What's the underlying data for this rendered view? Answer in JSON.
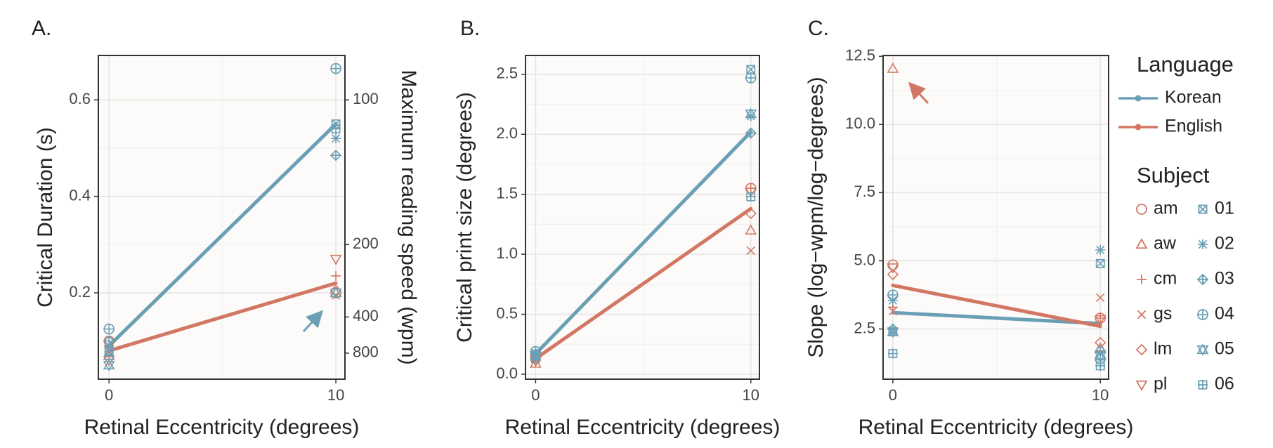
{
  "chart_data": [
    {
      "type": "scatter",
      "label": "A.",
      "xlabel": "Retinal Eccentricity (degrees)",
      "ylabel": "Critical Duration (s)",
      "y2label": "Maximum reading speed (wpm)",
      "x": [
        0,
        10
      ],
      "xlim": [
        -0.47,
        10.4
      ],
      "xticks": [
        0,
        10
      ],
      "ylim": [
        0.021,
        0.692
      ],
      "yticks": [
        0.2,
        0.4,
        0.6
      ],
      "y2lim": [
        2857,
        86.7
      ],
      "y2ticks": [
        100,
        200,
        400,
        800
      ],
      "y2scale": "reciprocal",
      "grid": true,
      "series": [
        {
          "name": "Korean",
          "color": "#6a9fb5",
          "values": [
            0.09,
            0.55
          ]
        },
        {
          "name": "English",
          "color": "#d27764",
          "values": [
            0.08,
            0.22
          ]
        },
        {
          "name": "am",
          "color": "#d27764",
          "marker": "circle",
          "values": [
            0.1,
            0.2
          ]
        },
        {
          "name": "aw",
          "color": "#d27764",
          "marker": "triangle",
          "values": [
            0.07,
            0.2
          ]
        },
        {
          "name": "cm",
          "color": "#d27764",
          "marker": "plus",
          "values": [
            0.09,
            0.235
          ]
        },
        {
          "name": "gs",
          "color": "#d27764",
          "marker": "cross",
          "values": [
            0.085,
            0.195
          ]
        },
        {
          "name": "lm",
          "color": "#d27764",
          "marker": "diamond",
          "values": [
            0.1,
            0.205
          ]
        },
        {
          "name": "pl",
          "color": "#d27764",
          "marker": "triangle-down",
          "values": [
            0.06,
            0.27
          ]
        },
        {
          "name": "01",
          "color": "#6a9fb5",
          "marker": "square-cross",
          "values": [
            0.08,
            0.55
          ]
        },
        {
          "name": "02",
          "color": "#6a9fb5",
          "marker": "asterisk",
          "values": [
            0.09,
            0.52
          ]
        },
        {
          "name": "03",
          "color": "#6a9fb5",
          "marker": "diamond-plus",
          "values": [
            0.1,
            0.485
          ]
        },
        {
          "name": "04",
          "color": "#6a9fb5",
          "marker": "circle-plus",
          "values": [
            0.125,
            0.665
          ]
        },
        {
          "name": "05",
          "color": "#6a9fb5",
          "marker": "star",
          "values": [
            0.05,
            0.2
          ]
        },
        {
          "name": "06",
          "color": "#6a9fb5",
          "marker": "square-plus",
          "values": [
            0.07,
            0.54
          ]
        }
      ]
    },
    {
      "type": "scatter",
      "label": "B.",
      "xlabel": "Retinal Eccentricity (degrees)",
      "ylabel": "Critical print size (degrees)",
      "x": [
        0,
        10
      ],
      "xlim": [
        -0.47,
        10.4
      ],
      "xticks": [
        0,
        10
      ],
      "ylim": [
        -0.041,
        2.657
      ],
      "yticks": [
        {
          "value": 0,
          "label": "0.0"
        },
        0.5,
        {
          "value": 1,
          "label": "1.0"
        },
        1.5,
        {
          "value": 2,
          "label": "2.0"
        },
        2.5
      ],
      "grid": true,
      "series": [
        {
          "name": "Korean",
          "color": "#6a9fb5",
          "values": [
            0.17,
            2.02
          ]
        },
        {
          "name": "English",
          "color": "#d27764",
          "values": [
            0.13,
            1.38
          ]
        },
        {
          "name": "am",
          "color": "#d27764",
          "marker": "circle",
          "values": [
            0.15,
            1.55
          ]
        },
        {
          "name": "aw",
          "color": "#d27764",
          "marker": "triangle",
          "values": [
            0.09,
            1.2
          ]
        },
        {
          "name": "cm",
          "color": "#d27764",
          "marker": "plus",
          "values": [
            0.14,
            1.55
          ]
        },
        {
          "name": "gs",
          "color": "#d27764",
          "marker": "cross",
          "values": [
            0.13,
            1.03
          ]
        },
        {
          "name": "lm",
          "color": "#d27764",
          "marker": "diamond",
          "values": [
            0.12,
            1.34
          ]
        },
        {
          "name": "pl",
          "color": "#d27764",
          "marker": "triangle-down",
          "values": [
            0.11,
            1.52
          ]
        },
        {
          "name": "01",
          "color": "#6a9fb5",
          "marker": "square-cross",
          "values": [
            0.16,
            2.54
          ]
        },
        {
          "name": "02",
          "color": "#6a9fb5",
          "marker": "asterisk",
          "values": [
            0.18,
            2.15
          ]
        },
        {
          "name": "03",
          "color": "#6a9fb5",
          "marker": "diamond-plus",
          "values": [
            0.17,
            2.01
          ]
        },
        {
          "name": "04",
          "color": "#6a9fb5",
          "marker": "circle-plus",
          "values": [
            0.19,
            2.47
          ]
        },
        {
          "name": "05",
          "color": "#6a9fb5",
          "marker": "star",
          "values": [
            0.15,
            2.17
          ]
        },
        {
          "name": "06",
          "color": "#6a9fb5",
          "marker": "square-plus",
          "values": [
            0.13,
            1.48
          ]
        }
      ]
    },
    {
      "type": "scatter",
      "label": "C.",
      "xlabel": "Retinal Eccentricity (degrees)",
      "ylabel": "Slope (log−wpm/log−degrees)",
      "x": [
        0,
        10
      ],
      "xlim": [
        -0.47,
        10.4
      ],
      "xticks": [
        0,
        10
      ],
      "ylim": [
        0.66,
        12.53
      ],
      "yticks": [
        2.5,
        {
          "value": 5,
          "label": "5.0"
        },
        7.5,
        {
          "value": 10,
          "label": "10.0"
        },
        12.5
      ],
      "grid": true,
      "series": [
        {
          "name": "Korean",
          "color": "#6a9fb5",
          "values": [
            3.1,
            2.7
          ]
        },
        {
          "name": "English",
          "color": "#d27764",
          "values": [
            4.1,
            2.6
          ]
        },
        {
          "name": "am",
          "color": "#d27764",
          "marker": "circle",
          "values": [
            4.85,
            2.9
          ]
        },
        {
          "name": "aw",
          "color": "#d27764",
          "marker": "triangle",
          "values": [
            12.05,
            1.8
          ]
        },
        {
          "name": "cm",
          "color": "#d27764",
          "marker": "plus",
          "values": [
            3.3,
            2.9
          ]
        },
        {
          "name": "gs",
          "color": "#d27764",
          "marker": "cross",
          "values": [
            3.15,
            3.65
          ]
        },
        {
          "name": "lm",
          "color": "#d27764",
          "marker": "diamond",
          "values": [
            4.5,
            2.0
          ]
        },
        {
          "name": "pl",
          "color": "#d27764",
          "marker": "triangle-down",
          "values": [
            4.75,
            2.85
          ]
        },
        {
          "name": "01",
          "color": "#6a9fb5",
          "marker": "square-cross",
          "values": [
            2.4,
            4.9
          ]
        },
        {
          "name": "02",
          "color": "#6a9fb5",
          "marker": "asterisk",
          "values": [
            3.55,
            5.4
          ]
        },
        {
          "name": "03",
          "color": "#6a9fb5",
          "marker": "diamond-plus",
          "values": [
            2.5,
            1.7
          ]
        },
        {
          "name": "04",
          "color": "#6a9fb5",
          "marker": "circle-plus",
          "values": [
            3.75,
            1.4
          ]
        },
        {
          "name": "05",
          "color": "#6a9fb5",
          "marker": "star",
          "values": [
            2.4,
            1.5
          ]
        },
        {
          "name": "06",
          "color": "#6a9fb5",
          "marker": "square-plus",
          "values": [
            1.6,
            1.15
          ]
        }
      ]
    }
  ],
  "legend": {
    "language_title": "Language",
    "subject_title": "Subject"
  }
}
